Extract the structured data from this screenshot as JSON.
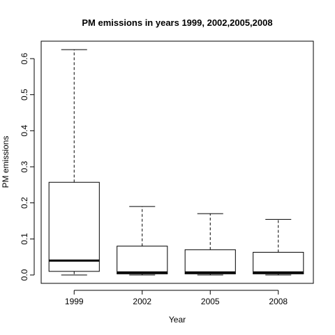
{
  "chart_data": {
    "type": "box",
    "title": "PM emissions in years 1999, 2002,2005,2008",
    "xlabel": "Year",
    "ylabel": "PM emissions",
    "categories": [
      "1999",
      "2002",
      "2005",
      "2008"
    ],
    "boxes": [
      {
        "category": "1999",
        "whisker_low": 0.0,
        "q1": 0.01,
        "median": 0.04,
        "q3": 0.257,
        "whisker_high": 0.625
      },
      {
        "category": "2002",
        "whisker_low": 0.0,
        "q1": 0.003,
        "median": 0.007,
        "q3": 0.08,
        "whisker_high": 0.19
      },
      {
        "category": "2005",
        "whisker_low": 0.0,
        "q1": 0.003,
        "median": 0.007,
        "q3": 0.07,
        "whisker_high": 0.17
      },
      {
        "category": "2008",
        "whisker_low": 0.0,
        "q1": 0.003,
        "median": 0.007,
        "q3": 0.063,
        "whisker_high": 0.154
      }
    ],
    "yticks": [
      "0.0",
      "0.1",
      "0.2",
      "0.3",
      "0.4",
      "0.5",
      "0.6"
    ],
    "ylim": [
      -0.025,
      0.65
    ],
    "grid": false,
    "legend": "none"
  }
}
